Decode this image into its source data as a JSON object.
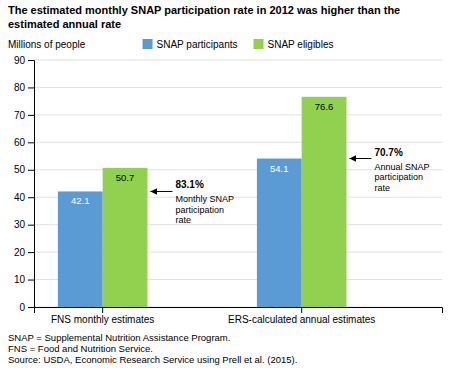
{
  "chart_data": {
    "type": "bar",
    "title": "The estimated monthly SNAP participation rate in 2012 was higher than the estimated annual rate",
    "y_label": "Millions of people",
    "categories": [
      "FNS monthly estimates",
      "ERS-calculated annual estimates"
    ],
    "series": [
      {
        "name": "SNAP participants",
        "color": "#5B9BD5",
        "values": [
          42.1,
          54.1
        ]
      },
      {
        "name": "SNAP eligibles",
        "color": "#92D050",
        "values": [
          50.7,
          76.6
        ]
      }
    ],
    "ylim": [
      0,
      90
    ],
    "yticks": [
      0,
      10,
      20,
      30,
      40,
      50,
      60,
      70,
      80,
      90
    ],
    "grid": true,
    "legend": "top",
    "data_labels": true,
    "annotations": [
      {
        "label": "83.1%",
        "text": "Monthly SNAP\nparticipation\nrate"
      },
      {
        "label": "70.7%",
        "text": "Annual SNAP\nparticipation\nrate"
      }
    ],
    "footnote": "SNAP = Supplemental Nutrition Assistance Program.\nFNS = Food and Nutrition Service.\nSource: USDA, Economic Research Service using Prell et al. (2015)."
  }
}
